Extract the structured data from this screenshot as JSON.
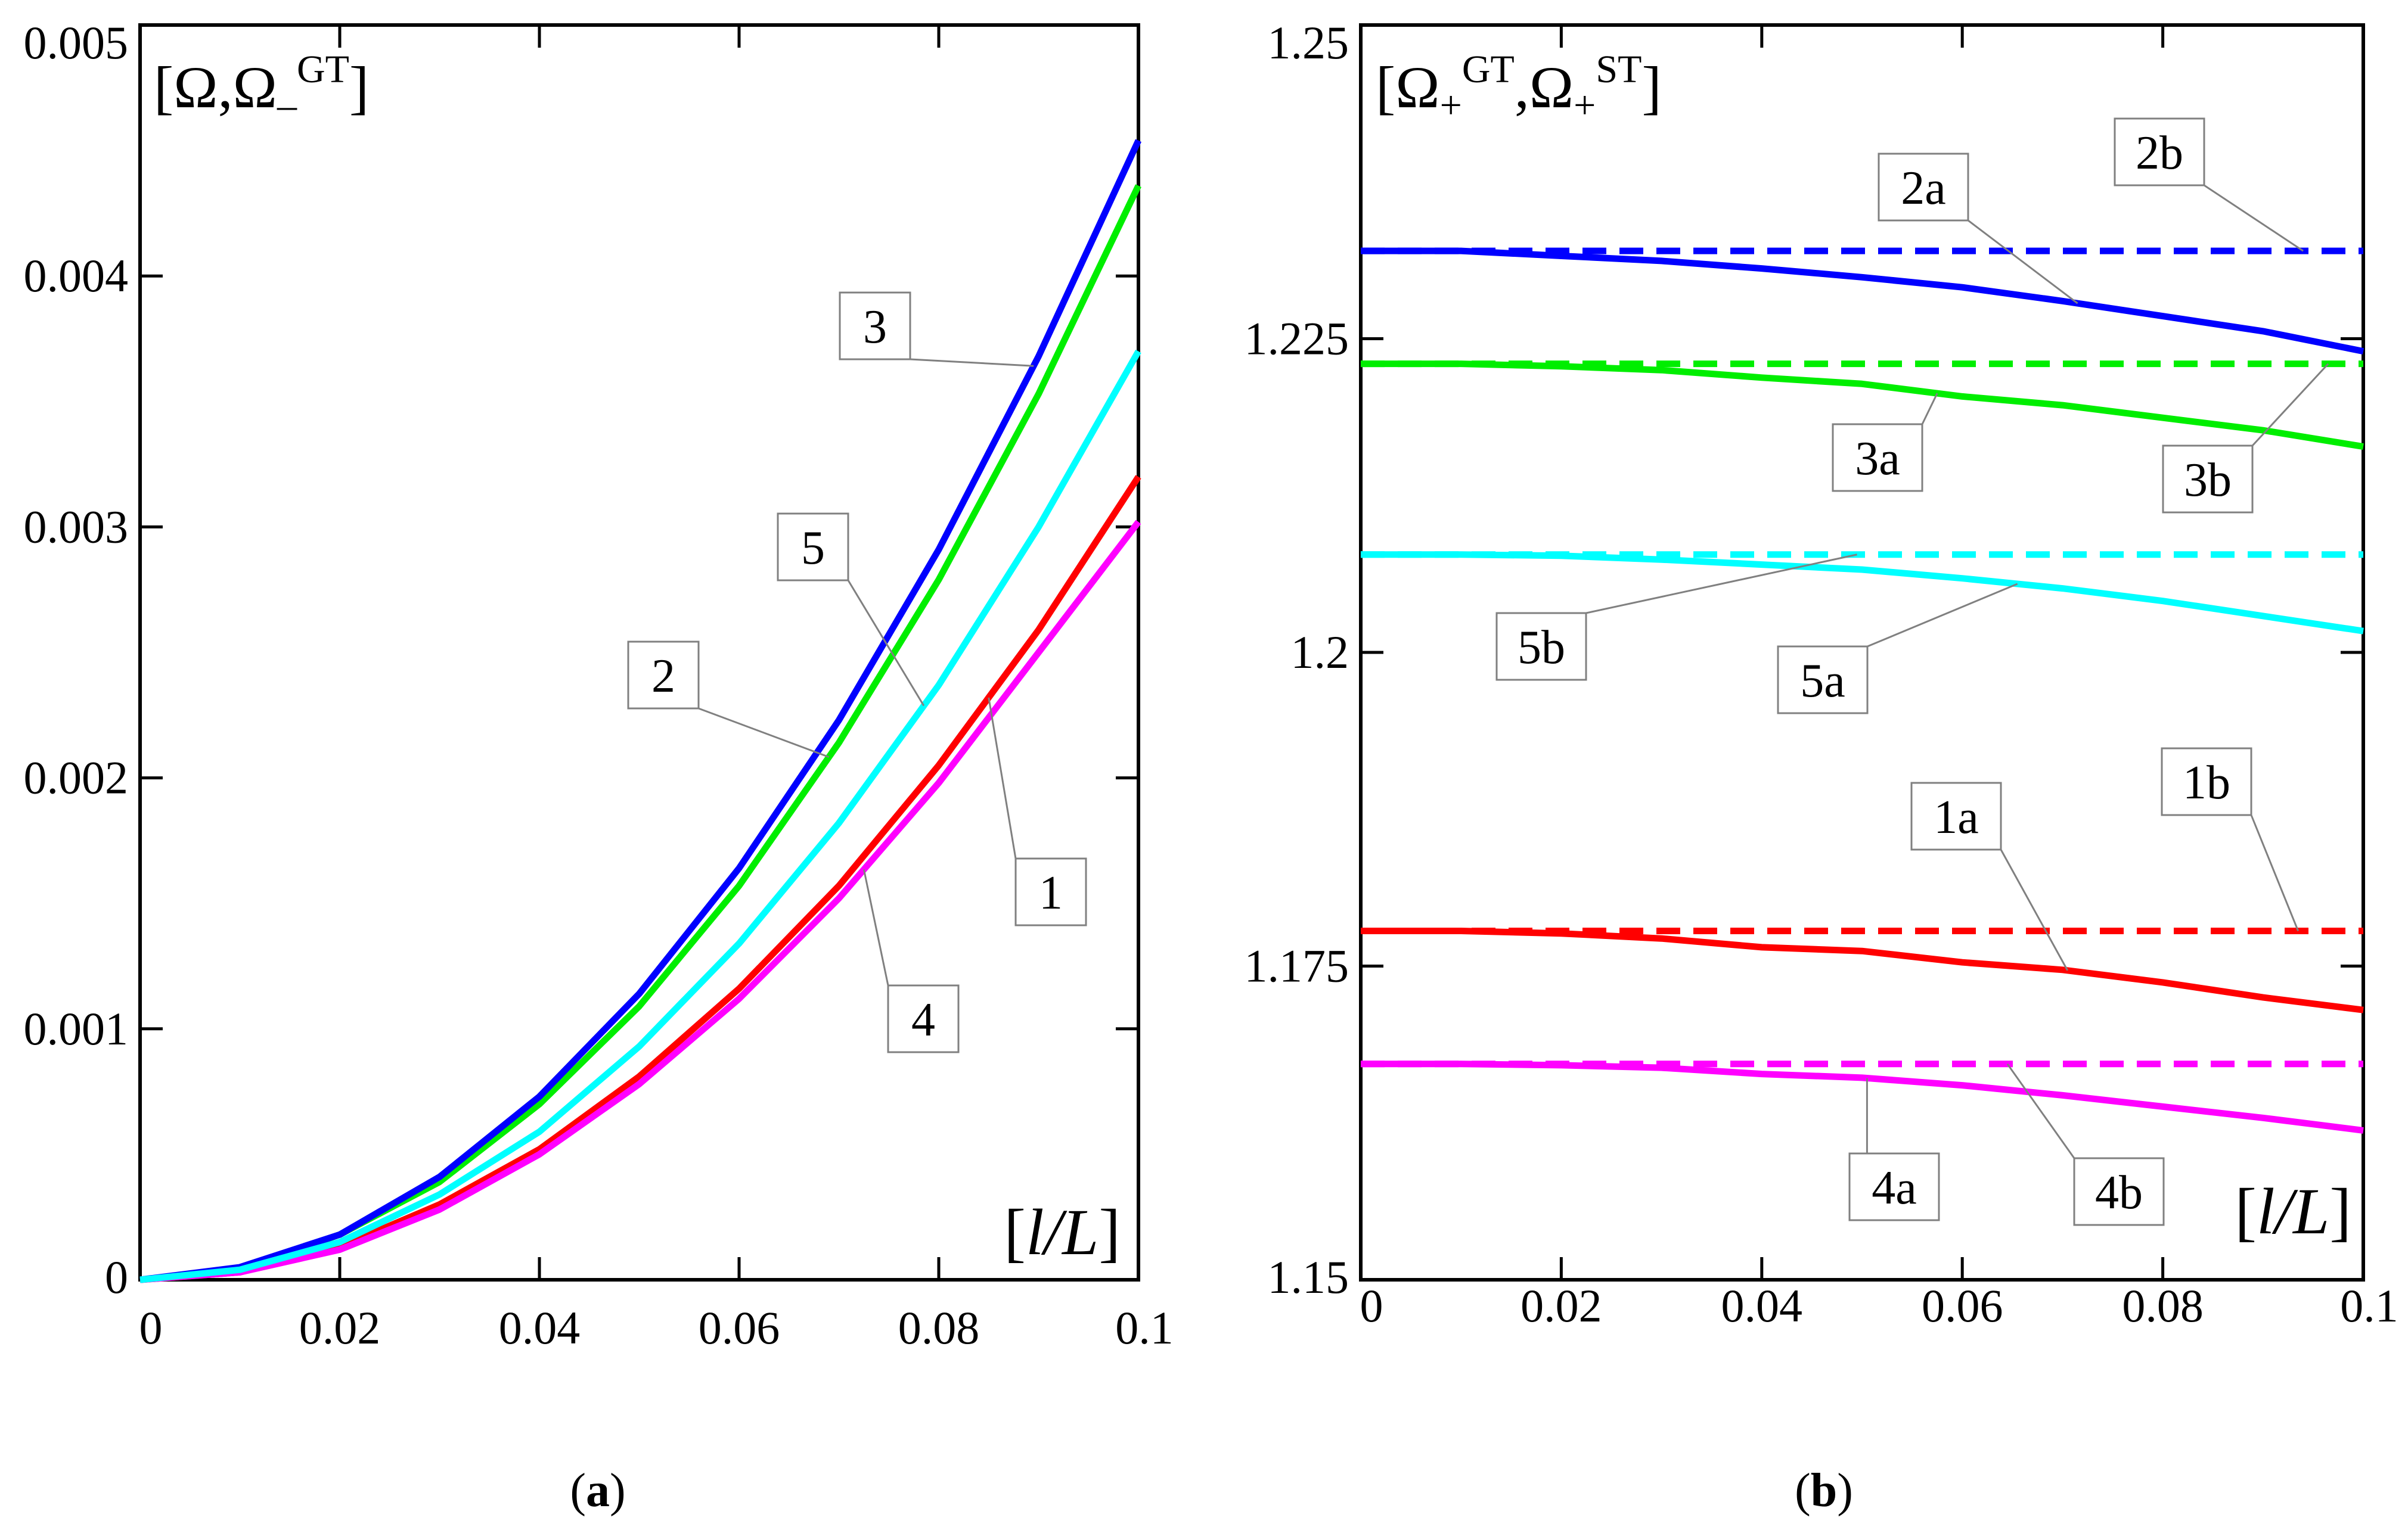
{
  "chart_data": [
    {
      "type": "line",
      "panel_caption": "(a)",
      "panel_caption_letter": "a",
      "title": "[Ω,Ω₋GT]",
      "title_parts": {
        "open": "[Ω,Ω",
        "sub": "–",
        "sup": "GT",
        "close": "]"
      },
      "xlabel": "[l/L]",
      "xlabel_parts": {
        "open": "[",
        "var": "l/L",
        "close": "]"
      },
      "xlim": [
        0,
        0.1
      ],
      "ylim": [
        0,
        0.005
      ],
      "x_ticks": [
        0,
        0.02,
        0.04,
        0.06,
        0.08,
        0.1
      ],
      "x_tick_labels": [
        "0",
        "0.02",
        "0.04",
        "0.06",
        "0.08",
        "0.1"
      ],
      "y_ticks": [
        0,
        0.001,
        0.002,
        0.003,
        0.004,
        0.005
      ],
      "y_tick_labels": [
        "0",
        "0.001",
        "0.002",
        "0.003",
        "0.004",
        "0.005"
      ],
      "x": [
        0,
        0.01,
        0.02,
        0.03,
        0.04,
        0.05,
        0.06,
        0.07,
        0.08,
        0.09,
        0.1
      ],
      "series": [
        {
          "name": "1",
          "color": "#ff0000",
          "style": "solid",
          "values": [
            0,
            3e-05,
            0.00013,
            0.0003,
            0.00052,
            0.00081,
            0.00116,
            0.00157,
            0.00205,
            0.00259,
            0.0032
          ]
        },
        {
          "name": "2",
          "color": "#00ee00",
          "style": "solid",
          "values": [
            0,
            4e-05,
            0.00018,
            0.00039,
            0.0007,
            0.00109,
            0.00157,
            0.00214,
            0.00279,
            0.00353,
            0.00436
          ]
        },
        {
          "name": "3",
          "color": "#0000ff",
          "style": "solid",
          "values": [
            0,
            5e-05,
            0.00018,
            0.00041,
            0.00073,
            0.00114,
            0.00164,
            0.00223,
            0.00291,
            0.00368,
            0.00454
          ]
        },
        {
          "name": "4",
          "color": "#ff00ff",
          "style": "solid",
          "values": [
            0,
            3e-05,
            0.00012,
            0.00028,
            0.0005,
            0.00078,
            0.00112,
            0.00152,
            0.00198,
            0.0025,
            0.00302
          ]
        },
        {
          "name": "5",
          "color": "#00ffff",
          "style": "solid",
          "values": [
            0,
            4e-05,
            0.00015,
            0.00034,
            0.00059,
            0.00093,
            0.00134,
            0.00182,
            0.00237,
            0.003,
            0.0037
          ]
        }
      ],
      "annotations": [
        {
          "label": "3",
          "series": "3",
          "at_x": 0.0895
        },
        {
          "label": "5",
          "series": "5",
          "at_x": 0.0785
        },
        {
          "label": "2",
          "series": "2",
          "at_x": 0.069
        },
        {
          "label": "1",
          "series": "1",
          "at_x": 0.085
        },
        {
          "label": "4",
          "series": "4",
          "at_x": 0.0725
        }
      ]
    },
    {
      "type": "line",
      "panel_caption": "(b)",
      "panel_caption_letter": "b",
      "title": "[Ω₊GT,Ω₊ST]",
      "title_parts": {
        "open": "[Ω",
        "sub1": "+",
        "sup1": "GT",
        "mid": ",Ω",
        "sub2": "+",
        "sup2": "ST",
        "close": "]"
      },
      "xlabel": "[l/L]",
      "xlabel_parts": {
        "open": "[",
        "var": "l/L",
        "close": "]"
      },
      "xlim": [
        0,
        0.1
      ],
      "ylim": [
        1.15,
        1.25
      ],
      "x_ticks": [
        0,
        0.02,
        0.04,
        0.06,
        0.08,
        0.1
      ],
      "x_tick_labels": [
        "0",
        "0.02",
        "0.04",
        "0.06",
        "0.08",
        "0.1"
      ],
      "y_ticks": [
        1.15,
        1.175,
        1.2,
        1.225,
        1.25
      ],
      "y_tick_labels": [
        "1.15",
        "1.175",
        "1.2",
        "1.225",
        "1.25"
      ],
      "x": [
        0,
        0.01,
        0.02,
        0.03,
        0.04,
        0.05,
        0.06,
        0.07,
        0.08,
        0.09,
        0.1
      ],
      "series": [
        {
          "name": "1a",
          "color": "#ff0000",
          "style": "solid",
          "values": [
            1.1778,
            1.1778,
            1.1776,
            1.1772,
            1.1765,
            1.1762,
            1.1753,
            1.1747,
            1.1737,
            1.1725,
            1.1715
          ]
        },
        {
          "name": "1b",
          "color": "#ff0000",
          "style": "dashed",
          "values": [
            1.1778,
            1.1778,
            1.1778,
            1.1778,
            1.1778,
            1.1778,
            1.1778,
            1.1778,
            1.1778,
            1.1778,
            1.1778
          ]
        },
        {
          "name": "2a",
          "color": "#0000ff",
          "style": "solid",
          "values": [
            1.232,
            1.232,
            1.2316,
            1.2312,
            1.2306,
            1.2299,
            1.2291,
            1.228,
            1.2268,
            1.2256,
            1.224
          ]
        },
        {
          "name": "2b",
          "color": "#0000ff",
          "style": "dashed",
          "values": [
            1.232,
            1.232,
            1.232,
            1.232,
            1.232,
            1.232,
            1.232,
            1.232,
            1.232,
            1.232,
            1.232
          ]
        },
        {
          "name": "3a",
          "color": "#00ee00",
          "style": "solid",
          "values": [
            1.223,
            1.223,
            1.2228,
            1.2225,
            1.2219,
            1.2214,
            1.2204,
            1.2197,
            1.2187,
            1.2177,
            1.2164
          ]
        },
        {
          "name": "3b",
          "color": "#00ee00",
          "style": "dashed",
          "values": [
            1.223,
            1.223,
            1.223,
            1.223,
            1.223,
            1.223,
            1.223,
            1.223,
            1.223,
            1.223,
            1.223
          ]
        },
        {
          "name": "4a",
          "color": "#ff00ff",
          "style": "solid",
          "values": [
            1.1672,
            1.1672,
            1.1671,
            1.1669,
            1.1664,
            1.1661,
            1.1655,
            1.1647,
            1.1638,
            1.1629,
            1.1619
          ]
        },
        {
          "name": "4b",
          "color": "#ff00ff",
          "style": "dashed",
          "values": [
            1.1672,
            1.1672,
            1.1672,
            1.1672,
            1.1672,
            1.1672,
            1.1672,
            1.1672,
            1.1672,
            1.1672,
            1.1672
          ]
        },
        {
          "name": "5a",
          "color": "#00ffff",
          "style": "solid",
          "values": [
            1.2078,
            1.2078,
            1.2077,
            1.2074,
            1.207,
            1.2066,
            1.2059,
            1.2051,
            1.2041,
            1.2029,
            1.2017
          ]
        },
        {
          "name": "5b",
          "color": "#00ffff",
          "style": "dashed",
          "values": [
            1.2078,
            1.2078,
            1.2078,
            1.2078,
            1.2078,
            1.2078,
            1.2078,
            1.2078,
            1.2078,
            1.2078,
            1.2078
          ]
        }
      ],
      "annotations": [
        {
          "label": "2b",
          "series": "2b",
          "at_x": 0.094
        },
        {
          "label": "2a",
          "series": "2a",
          "at_x": 0.0715
        },
        {
          "label": "3a",
          "series": "3a",
          "at_x": 0.0575
        },
        {
          "label": "3b",
          "series": "3b",
          "at_x": 0.0965
        },
        {
          "label": "5b",
          "series": "5b",
          "at_x": 0.0495
        },
        {
          "label": "5a",
          "series": "5a",
          "at_x": 0.0655
        },
        {
          "label": "1a",
          "series": "1a",
          "at_x": 0.0705
        },
        {
          "label": "1b",
          "series": "1b",
          "at_x": 0.0935
        },
        {
          "label": "4a",
          "series": "4a",
          "at_x": 0.0505
        },
        {
          "label": "4b",
          "series": "4b",
          "at_x": 0.0645
        }
      ]
    }
  ]
}
